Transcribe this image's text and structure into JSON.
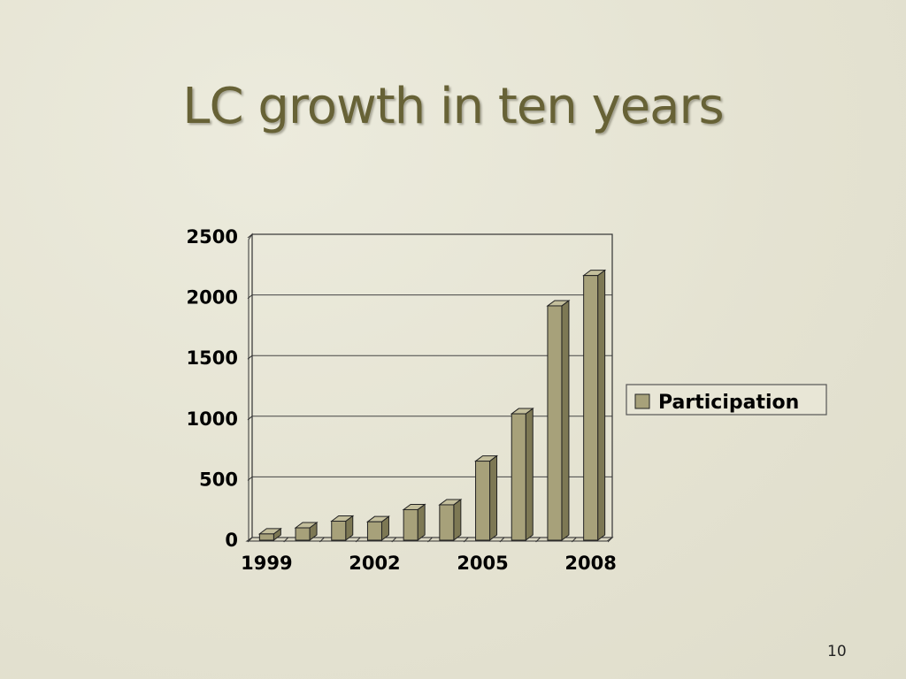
{
  "slide": {
    "title": "LC growth in ten years",
    "page_number": "10"
  },
  "colors": {
    "bar_front": "#a7a17a",
    "bar_side": "#7d7854",
    "bar_top": "#c4bf9c",
    "title": "#676236"
  },
  "chart_data": {
    "type": "bar",
    "title": "",
    "xlabel": "",
    "ylabel": "",
    "categories": [
      "1999",
      "2000",
      "2001",
      "2002",
      "2003",
      "2004",
      "2005",
      "2006",
      "2007",
      "2008"
    ],
    "x_tick_labels": [
      "1999",
      "2002",
      "2005",
      "2008"
    ],
    "y_ticks": [
      "0",
      "500",
      "1000",
      "1500",
      "2000",
      "2500"
    ],
    "ylim": [
      0,
      2500
    ],
    "grid": true,
    "legend_position": "right",
    "series": [
      {
        "name": "Participation",
        "values": [
          30,
          80,
          135,
          130,
          230,
          270,
          630,
          1020,
          1910,
          2160
        ]
      }
    ]
  }
}
